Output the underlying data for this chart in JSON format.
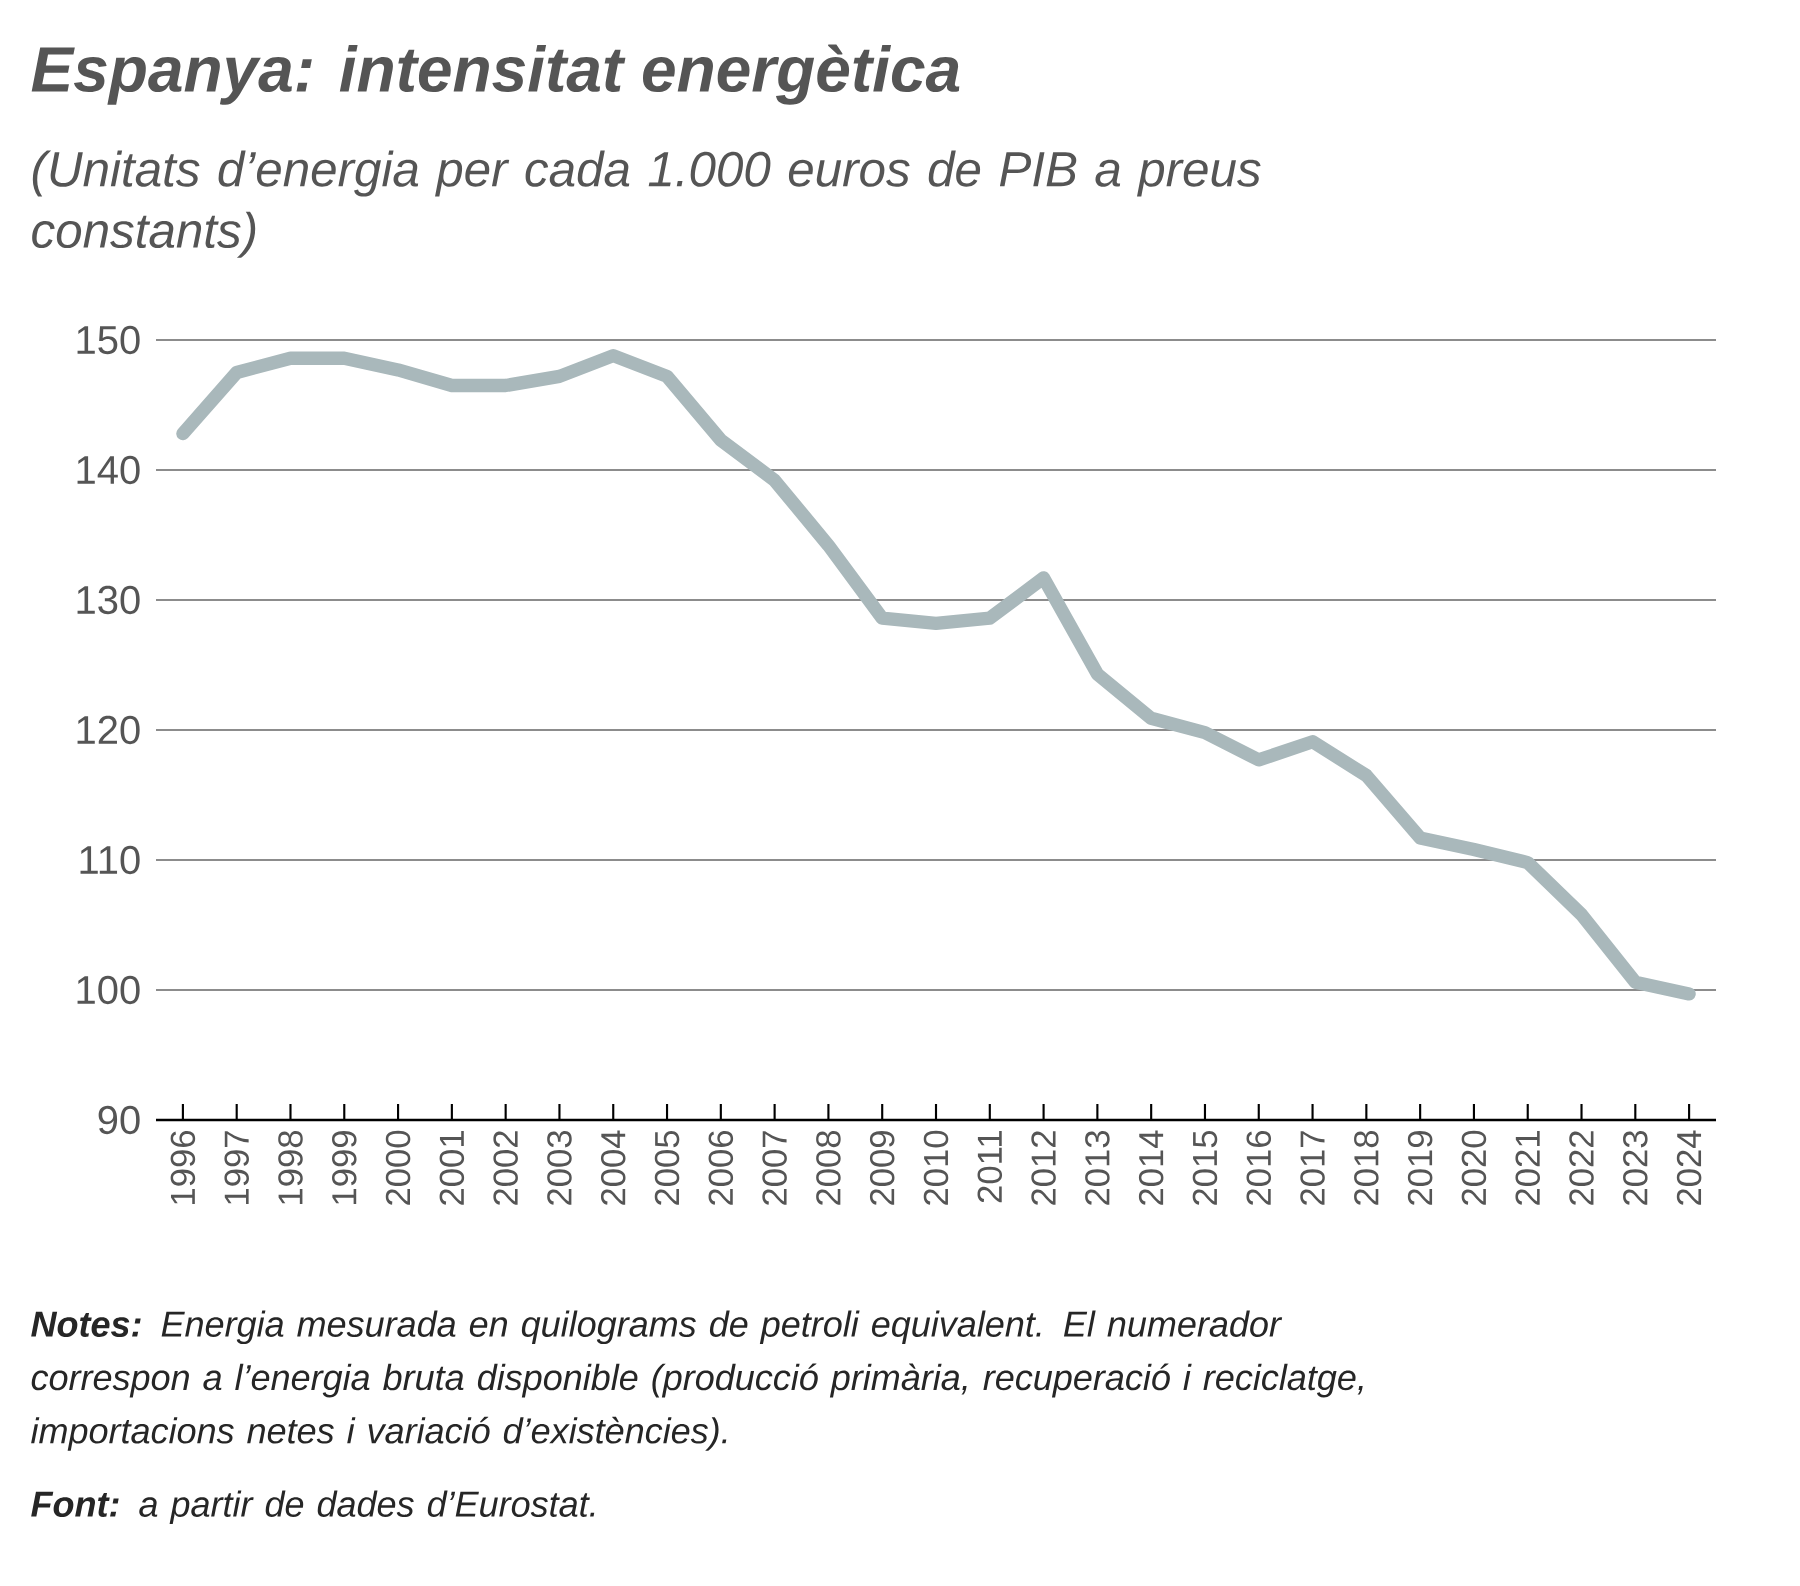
{
  "chart_data": {
    "type": "line",
    "title": "Espanya: intensitat energètica",
    "subtitle": "(Unitats d’energia per cada 1.000 euros de PIB a preus constants)",
    "categories": [
      "1996",
      "1997",
      "1998",
      "1999",
      "2000",
      "2001",
      "2002",
      "2003",
      "2004",
      "2005",
      "2006",
      "2007",
      "2008",
      "2009",
      "2010",
      "2011",
      "2012",
      "2013",
      "2014",
      "2015",
      "2016",
      "2017",
      "2018",
      "2019",
      "2020",
      "2021",
      "2022",
      "2023",
      "2024"
    ],
    "series": [
      {
        "color": "#a9b8bb",
        "values": [
          142.8,
          147.5,
          148.6,
          148.6,
          147.7,
          146.5,
          146.5,
          147.2,
          148.8,
          147.2,
          142.3,
          139.2,
          134.2,
          128.6,
          128.2,
          128.6,
          131.7,
          124.3,
          120.9,
          119.8,
          117.7,
          119.1,
          116.5,
          111.7,
          110.8,
          109.8,
          105.8,
          100.6,
          99.7
        ]
      }
    ],
    "ylim": [
      90,
      150
    ],
    "yticks": [
      90,
      100,
      110,
      120,
      130,
      140,
      150
    ],
    "grid": "y",
    "marker": "none",
    "line_style": "solid",
    "annotations": [
      "**Notes:** Energia mesurada en quilograms de petroli equivalent. El numerador correspon a l’energia bruta disponible (producció primària, recuperació i reciclatge, importacions netes i variació d’existències).",
      "**Font:** a partir de dades d’Eurostat."
    ]
  }
}
